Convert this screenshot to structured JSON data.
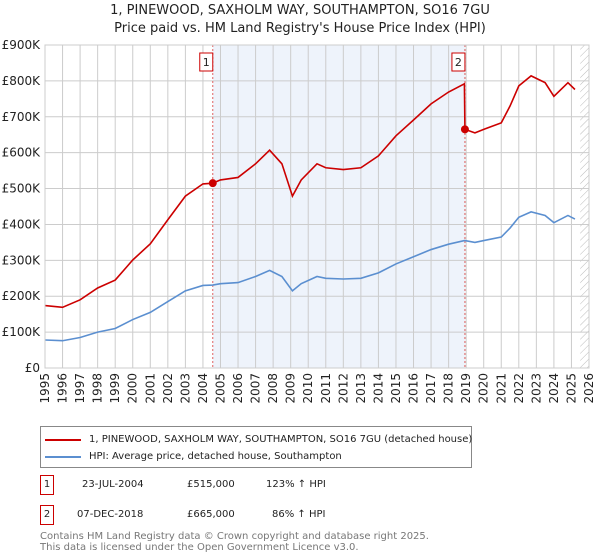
{
  "title": "1, PINEWOOD, SAXHOLM WAY, SOUTHAMPTON, SO16 7GU",
  "subtitle": "Price paid vs. HM Land Registry's House Price Index (HPI)",
  "chart_data": {
    "type": "line",
    "xlim": [
      1995,
      2026
    ],
    "ylim": [
      0,
      900000
    ],
    "yticks": [
      0,
      100000,
      200000,
      300000,
      400000,
      500000,
      600000,
      700000,
      800000,
      900000
    ],
    "ytick_labels": [
      "£0",
      "£100K",
      "£200K",
      "£300K",
      "£400K",
      "£500K",
      "£600K",
      "£700K",
      "£800K",
      "£900K"
    ],
    "xticks": [
      "1995",
      "1996",
      "1997",
      "1998",
      "1999",
      "2000",
      "2001",
      "2002",
      "2003",
      "2004",
      "2005",
      "2006",
      "2007",
      "2008",
      "2009",
      "2010",
      "2011",
      "2012",
      "2013",
      "2014",
      "2015",
      "2016",
      "2017",
      "2018",
      "2019",
      "2020",
      "2021",
      "2022",
      "2023",
      "2024",
      "2025",
      "2026"
    ],
    "grid": true,
    "shaded_range": [
      2004.56,
      2018.93
    ],
    "hatched_from": 2025.5,
    "series": [
      {
        "name": "1, PINEWOOD, SAXHOLM WAY, SOUTHAMPTON, SO16 7GU (detached house)",
        "color": "#cc0000",
        "x": [
          1995,
          1996,
          1997,
          1998,
          1999,
          2000,
          2001,
          2002,
          2003,
          2004,
          2004.56,
          2005,
          2006,
          2007,
          2007.8,
          2008.5,
          2009.1,
          2009.6,
          2010.5,
          2011,
          2012,
          2013,
          2014,
          2015,
          2016,
          2017,
          2018,
          2018.9,
          2018.93,
          2019.5,
          2020,
          2021,
          2021.5,
          2022,
          2022.7,
          2023.5,
          2024,
          2024.8,
          2025.2
        ],
        "y": [
          174000,
          169000,
          190000,
          223000,
          245000,
          301000,
          346000,
          413000,
          479000,
          513000,
          515000,
          524000,
          531000,
          569000,
          607000,
          569000,
          479000,
          524000,
          569000,
          558000,
          553000,
          558000,
          591000,
          647000,
          691000,
          736000,
          769000,
          792000,
          665000,
          655000,
          665000,
          683000,
          730000,
          786000,
          814000,
          795000,
          757000,
          795000,
          776000
        ]
      },
      {
        "name": "HPI: Average price, detached house, Southampton",
        "color": "#5b8fd0",
        "x": [
          1995,
          1996,
          1997,
          1998,
          1999,
          2000,
          2001,
          2002,
          2003,
          2004,
          2004.56,
          2005,
          2006,
          2007,
          2007.8,
          2008.5,
          2009.1,
          2009.6,
          2010.5,
          2011,
          2012,
          2013,
          2014,
          2015,
          2016,
          2017,
          2018,
          2018.9,
          2018.93,
          2019.5,
          2020,
          2021,
          2021.5,
          2022,
          2022.7,
          2023.5,
          2024,
          2024.8,
          2025.2
        ],
        "y": [
          78000,
          76000,
          85000,
          100000,
          110000,
          135000,
          155000,
          185000,
          215000,
          230000,
          231000,
          235000,
          238000,
          255000,
          272000,
          255000,
          215000,
          235000,
          255000,
          250000,
          248000,
          250000,
          265000,
          290000,
          310000,
          330000,
          345000,
          355000,
          355000,
          350000,
          355000,
          365000,
          390000,
          420000,
          435000,
          425000,
          405000,
          425000,
          415000
        ]
      }
    ],
    "markers": [
      {
        "label": "1",
        "x": 2004.56,
        "y": 515000
      },
      {
        "label": "2",
        "x": 2018.93,
        "y": 665000
      }
    ]
  },
  "sales": [
    {
      "num": "1",
      "date": "23-JUL-2004",
      "price": "£515,000",
      "hpi": "123% ↑ HPI"
    },
    {
      "num": "2",
      "date": "07-DEC-2018",
      "price": "£665,000",
      "hpi": "86% ↑ HPI"
    }
  ],
  "footer": [
    "Contains HM Land Registry data © Crown copyright and database right 2025.",
    "This data is licensed under the Open Government Licence v3.0."
  ]
}
